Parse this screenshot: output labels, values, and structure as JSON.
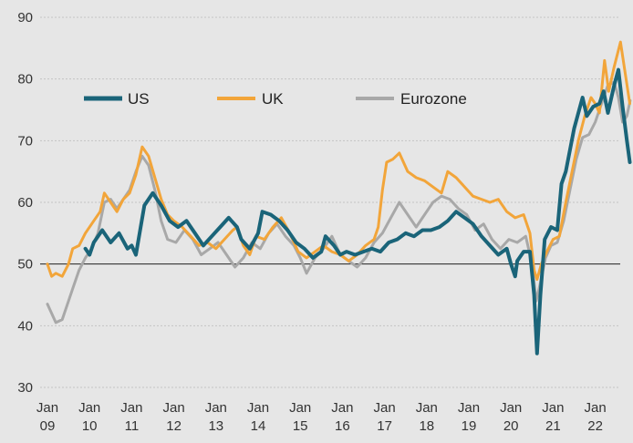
{
  "chart_data": {
    "type": "line",
    "title": "",
    "xlabel": "",
    "ylabel": "",
    "ylim": [
      30,
      90
    ],
    "xlim": [
      2009.0,
      2022.85
    ],
    "yticks": [
      30,
      40,
      50,
      60,
      70,
      80,
      90
    ],
    "xticks": [
      {
        "top": "Jan",
        "bottom": "09"
      },
      {
        "top": "Jan",
        "bottom": "10"
      },
      {
        "top": "Jan",
        "bottom": "11"
      },
      {
        "top": "Jan",
        "bottom": "12"
      },
      {
        "top": "Jan",
        "bottom": "13"
      },
      {
        "top": "Jan",
        "bottom": "14"
      },
      {
        "top": "Jan",
        "bottom": "15"
      },
      {
        "top": "Jan",
        "bottom": "16"
      },
      {
        "top": "Jan",
        "bottom": "17"
      },
      {
        "top": "Jan",
        "bottom": "18"
      },
      {
        "top": "Jan",
        "bottom": "19"
      },
      {
        "top": "Jan",
        "bottom": "20"
      },
      {
        "top": "Jan",
        "bottom": "21"
      },
      {
        "top": "Jan",
        "bottom": "22"
      }
    ],
    "reference_line": 50,
    "grid": "horizontal dotted",
    "legend_position": "top-left",
    "series": [
      {
        "name": "US",
        "color": "#1a6479",
        "points": [
          [
            2009.9,
            52.5
          ],
          [
            2010.0,
            51.5
          ],
          [
            2010.1,
            53.5
          ],
          [
            2010.3,
            55.5
          ],
          [
            2010.5,
            53.5
          ],
          [
            2010.7,
            55
          ],
          [
            2010.9,
            52.5
          ],
          [
            2011.0,
            53
          ],
          [
            2011.1,
            51.5
          ],
          [
            2011.3,
            59.5
          ],
          [
            2011.5,
            61.5
          ],
          [
            2011.7,
            59.5
          ],
          [
            2011.9,
            57
          ],
          [
            2012.1,
            56
          ],
          [
            2012.3,
            57
          ],
          [
            2012.5,
            55
          ],
          [
            2012.7,
            53
          ],
          [
            2012.9,
            54.5
          ],
          [
            2013.1,
            56
          ],
          [
            2013.3,
            57.5
          ],
          [
            2013.5,
            56
          ],
          [
            2013.6,
            54
          ],
          [
            2013.8,
            52.5
          ],
          [
            2014.0,
            55
          ],
          [
            2014.1,
            58.5
          ],
          [
            2014.3,
            58
          ],
          [
            2014.5,
            57
          ],
          [
            2014.7,
            55.5
          ],
          [
            2014.9,
            53.5
          ],
          [
            2015.1,
            52.5
          ],
          [
            2015.3,
            51
          ],
          [
            2015.5,
            52
          ],
          [
            2015.6,
            54.5
          ],
          [
            2015.8,
            53
          ],
          [
            2015.95,
            51.5
          ],
          [
            2016.1,
            52
          ],
          [
            2016.3,
            51.5
          ],
          [
            2016.5,
            52
          ],
          [
            2016.7,
            52.5
          ],
          [
            2016.9,
            52
          ],
          [
            2017.1,
            53.5
          ],
          [
            2017.3,
            54
          ],
          [
            2017.5,
            55
          ],
          [
            2017.7,
            54.5
          ],
          [
            2017.9,
            55.5
          ],
          [
            2018.1,
            55.5
          ],
          [
            2018.3,
            56
          ],
          [
            2018.5,
            57
          ],
          [
            2018.7,
            58.5
          ],
          [
            2018.9,
            57.5
          ],
          [
            2019.1,
            56.5
          ],
          [
            2019.3,
            54.5
          ],
          [
            2019.5,
            53
          ],
          [
            2019.7,
            51.5
          ],
          [
            2019.9,
            52.5
          ],
          [
            2020.0,
            50
          ],
          [
            2020.1,
            48
          ],
          [
            2020.15,
            50.5
          ],
          [
            2020.3,
            52
          ],
          [
            2020.45,
            52
          ],
          [
            2020.55,
            45
          ],
          [
            2020.62,
            35.5
          ],
          [
            2020.7,
            45
          ],
          [
            2020.8,
            54
          ],
          [
            2020.95,
            56
          ],
          [
            2021.1,
            55.5
          ],
          [
            2021.2,
            63
          ],
          [
            2021.3,
            65
          ],
          [
            2021.5,
            72
          ],
          [
            2021.7,
            77
          ],
          [
            2021.8,
            74
          ],
          [
            2021.95,
            75.5
          ],
          [
            2022.1,
            76
          ],
          [
            2022.2,
            78
          ],
          [
            2022.3,
            74.5
          ],
          [
            2022.45,
            79
          ],
          [
            2022.55,
            81.5
          ],
          [
            2022.65,
            75.5
          ],
          [
            2022.75,
            70
          ],
          [
            2022.82,
            66.5
          ]
        ]
      },
      {
        "name": "UK",
        "color": "#f2a53a",
        "points": [
          [
            2009.0,
            50
          ],
          [
            2009.1,
            48
          ],
          [
            2009.2,
            48.5
          ],
          [
            2009.35,
            48
          ],
          [
            2009.5,
            50
          ],
          [
            2009.6,
            52.5
          ],
          [
            2009.75,
            53
          ],
          [
            2009.9,
            55
          ],
          [
            2010.1,
            57
          ],
          [
            2010.25,
            58.5
          ],
          [
            2010.35,
            61.5
          ],
          [
            2010.5,
            60
          ],
          [
            2010.65,
            58.5
          ],
          [
            2010.8,
            60.5
          ],
          [
            2010.95,
            61.5
          ],
          [
            2011.1,
            64.5
          ],
          [
            2011.25,
            69
          ],
          [
            2011.4,
            67.5
          ],
          [
            2011.55,
            64
          ],
          [
            2011.7,
            60.5
          ],
          [
            2011.85,
            58
          ],
          [
            2012.0,
            57
          ],
          [
            2012.2,
            56
          ],
          [
            2012.4,
            54.5
          ],
          [
            2012.6,
            53
          ],
          [
            2012.8,
            53.5
          ],
          [
            2013.0,
            52.5
          ],
          [
            2013.2,
            54
          ],
          [
            2013.4,
            55.5
          ],
          [
            2013.5,
            56
          ],
          [
            2013.65,
            53
          ],
          [
            2013.8,
            51.5
          ],
          [
            2013.95,
            54.5
          ],
          [
            2014.15,
            54
          ],
          [
            2014.35,
            56
          ],
          [
            2014.55,
            57.5
          ],
          [
            2014.75,
            55
          ],
          [
            2014.95,
            52
          ],
          [
            2015.15,
            51
          ],
          [
            2015.35,
            52
          ],
          [
            2015.55,
            53
          ],
          [
            2015.75,
            52
          ],
          [
            2015.95,
            51.5
          ],
          [
            2016.15,
            50.5
          ],
          [
            2016.35,
            51.5
          ],
          [
            2016.55,
            53
          ],
          [
            2016.75,
            54
          ],
          [
            2016.85,
            56
          ],
          [
            2016.95,
            62
          ],
          [
            2017.05,
            66.5
          ],
          [
            2017.2,
            67
          ],
          [
            2017.35,
            68
          ],
          [
            2017.55,
            65
          ],
          [
            2017.75,
            64
          ],
          [
            2017.95,
            63.5
          ],
          [
            2018.15,
            62.5
          ],
          [
            2018.35,
            61.5
          ],
          [
            2018.5,
            65
          ],
          [
            2018.7,
            64
          ],
          [
            2018.9,
            62.5
          ],
          [
            2019.1,
            61
          ],
          [
            2019.3,
            60.5
          ],
          [
            2019.5,
            60
          ],
          [
            2019.7,
            60.5
          ],
          [
            2019.9,
            58.5
          ],
          [
            2020.1,
            57.5
          ],
          [
            2020.3,
            58
          ],
          [
            2020.45,
            55
          ],
          [
            2020.55,
            49
          ],
          [
            2020.62,
            47.5
          ],
          [
            2020.72,
            50
          ],
          [
            2020.85,
            52
          ],
          [
            2021.0,
            54
          ],
          [
            2021.15,
            54.5
          ],
          [
            2021.3,
            60
          ],
          [
            2021.45,
            65
          ],
          [
            2021.6,
            70
          ],
          [
            2021.75,
            74
          ],
          [
            2021.9,
            77
          ],
          [
            2022.0,
            76
          ],
          [
            2022.1,
            74.5
          ],
          [
            2022.22,
            83
          ],
          [
            2022.32,
            78
          ],
          [
            2022.45,
            82
          ],
          [
            2022.6,
            86
          ],
          [
            2022.72,
            80.5
          ],
          [
            2022.82,
            76
          ]
        ]
      },
      {
        "name": "Eurozone",
        "color": "#a8a8a8",
        "points": [
          [
            2009.0,
            43.5
          ],
          [
            2009.1,
            42
          ],
          [
            2009.2,
            40.5
          ],
          [
            2009.35,
            41
          ],
          [
            2009.5,
            44
          ],
          [
            2009.6,
            46
          ],
          [
            2009.75,
            49
          ],
          [
            2009.9,
            51
          ],
          [
            2010.05,
            52.5
          ],
          [
            2010.2,
            55
          ],
          [
            2010.35,
            60
          ],
          [
            2010.5,
            60.5
          ],
          [
            2010.65,
            59
          ],
          [
            2010.8,
            60.5
          ],
          [
            2010.95,
            62
          ],
          [
            2011.1,
            65
          ],
          [
            2011.25,
            67.5
          ],
          [
            2011.4,
            66
          ],
          [
            2011.55,
            62
          ],
          [
            2011.7,
            57
          ],
          [
            2011.85,
            54
          ],
          [
            2012.05,
            53.5
          ],
          [
            2012.25,
            55.5
          ],
          [
            2012.45,
            54
          ],
          [
            2012.65,
            51.5
          ],
          [
            2012.85,
            52.5
          ],
          [
            2013.05,
            53.5
          ],
          [
            2013.25,
            51.5
          ],
          [
            2013.45,
            49.5
          ],
          [
            2013.65,
            51
          ],
          [
            2013.85,
            53.5
          ],
          [
            2014.05,
            52.5
          ],
          [
            2014.25,
            55
          ],
          [
            2014.45,
            56.5
          ],
          [
            2014.65,
            54.5
          ],
          [
            2014.85,
            53
          ],
          [
            2015.0,
            51
          ],
          [
            2015.15,
            48.5
          ],
          [
            2015.35,
            51
          ],
          [
            2015.55,
            52.5
          ],
          [
            2015.75,
            54.5
          ],
          [
            2015.95,
            51.5
          ],
          [
            2016.15,
            50.5
          ],
          [
            2016.35,
            49.5
          ],
          [
            2016.55,
            51
          ],
          [
            2016.75,
            53.5
          ],
          [
            2016.95,
            55
          ],
          [
            2017.15,
            57.5
          ],
          [
            2017.35,
            60
          ],
          [
            2017.55,
            58
          ],
          [
            2017.75,
            56
          ],
          [
            2017.95,
            58
          ],
          [
            2018.15,
            60
          ],
          [
            2018.35,
            61
          ],
          [
            2018.55,
            60.5
          ],
          [
            2018.75,
            59
          ],
          [
            2018.95,
            58
          ],
          [
            2019.15,
            55.5
          ],
          [
            2019.35,
            56.5
          ],
          [
            2019.55,
            54
          ],
          [
            2019.75,
            52.5
          ],
          [
            2019.95,
            54
          ],
          [
            2020.15,
            53.5
          ],
          [
            2020.35,
            54.5
          ],
          [
            2020.5,
            50
          ],
          [
            2020.6,
            44
          ],
          [
            2020.7,
            47
          ],
          [
            2020.82,
            51
          ],
          [
            2020.95,
            53
          ],
          [
            2021.1,
            53.5
          ],
          [
            2021.25,
            57
          ],
          [
            2021.4,
            62
          ],
          [
            2021.55,
            67
          ],
          [
            2021.7,
            70.5
          ],
          [
            2021.85,
            71
          ],
          [
            2022.0,
            73
          ],
          [
            2022.15,
            76
          ],
          [
            2022.3,
            79
          ],
          [
            2022.45,
            79.5
          ],
          [
            2022.55,
            77
          ],
          [
            2022.65,
            73
          ],
          [
            2022.75,
            74
          ],
          [
            2022.83,
            76.5
          ]
        ]
      }
    ]
  }
}
